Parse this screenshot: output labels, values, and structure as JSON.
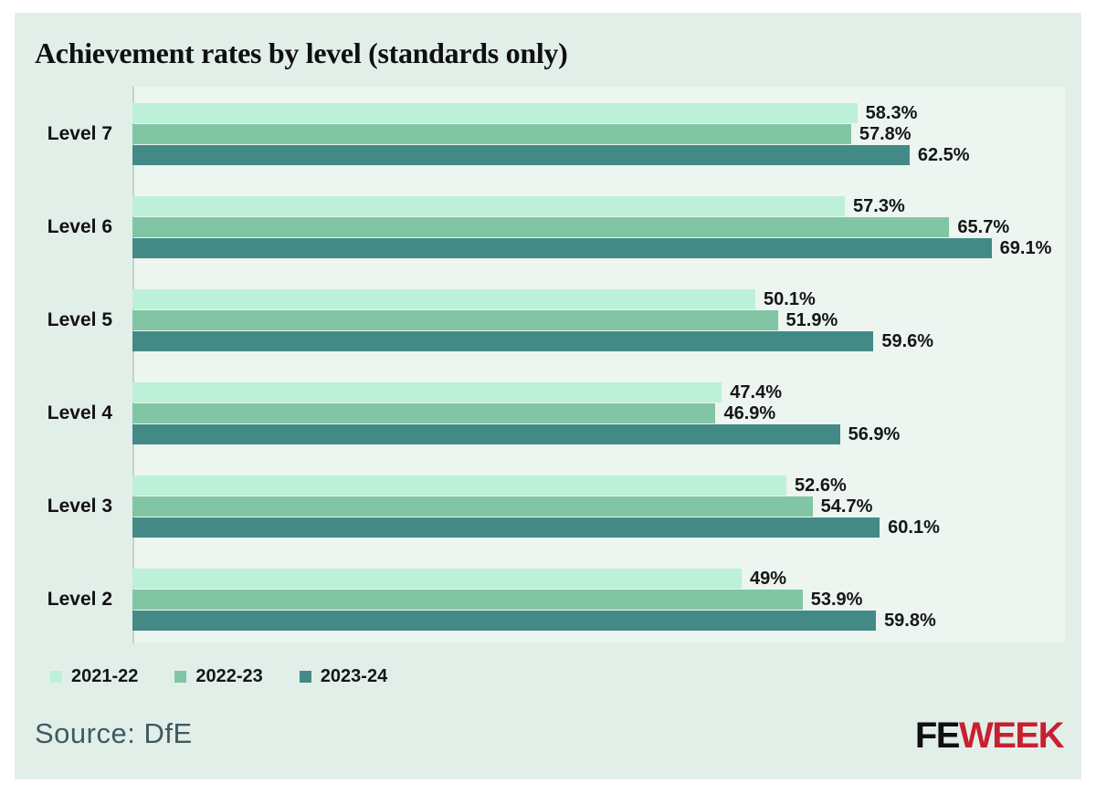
{
  "title": "Achievement rates by level (standards only)",
  "chart_data": {
    "type": "bar",
    "orientation": "horizontal",
    "title": "Achievement rates by level (standards only)",
    "categories": [
      "Level 7",
      "Level 6",
      "Level 5",
      "Level 4",
      "Level 3",
      "Level 2"
    ],
    "series": [
      {
        "name": "2021-22",
        "color": "#bdf0d8",
        "values": [
          58.3,
          57.3,
          50.1,
          47.4,
          52.6,
          49
        ],
        "labels": [
          "58.3%",
          "57.3%",
          "50.1%",
          "47.4%",
          "52.6%",
          "49%"
        ]
      },
      {
        "name": "2022-23",
        "color": "#82c5a5",
        "values": [
          57.8,
          65.7,
          51.9,
          46.9,
          54.7,
          53.9
        ],
        "labels": [
          "57.8%",
          "65.7%",
          "51.9%",
          "46.9%",
          "54.7%",
          "53.9%"
        ]
      },
      {
        "name": "2023-24",
        "color": "#438a86",
        "values": [
          62.5,
          69.1,
          59.6,
          56.9,
          60.1,
          59.8
        ],
        "labels": [
          "62.5%",
          "69.1%",
          "59.6%",
          "56.9%",
          "60.1%",
          "59.8%"
        ]
      }
    ],
    "xlim": [
      0,
      75
    ],
    "grid": false,
    "value_labels_shown": true,
    "legend_position": "bottom-left"
  },
  "legend": {
    "items": [
      {
        "label": "2021-22",
        "color": "#bdf0d8"
      },
      {
        "label": "2022-23",
        "color": "#82c5a5"
      },
      {
        "label": "2023-24",
        "color": "#438a86"
      }
    ]
  },
  "footer": {
    "source": "Source: DfE",
    "logo": {
      "fe": "FE",
      "week": "WEEK",
      "fe_color": "#101010",
      "week_color": "#c8202f"
    }
  },
  "colors": {
    "page_bg": "#ffffff",
    "card_bg": "#e2efe9",
    "plot_bg": "#ecf5f0",
    "axis_line": "#c6d3cc",
    "title": "#101010",
    "value_label": "#161616",
    "source_text": "#3f5a61"
  }
}
